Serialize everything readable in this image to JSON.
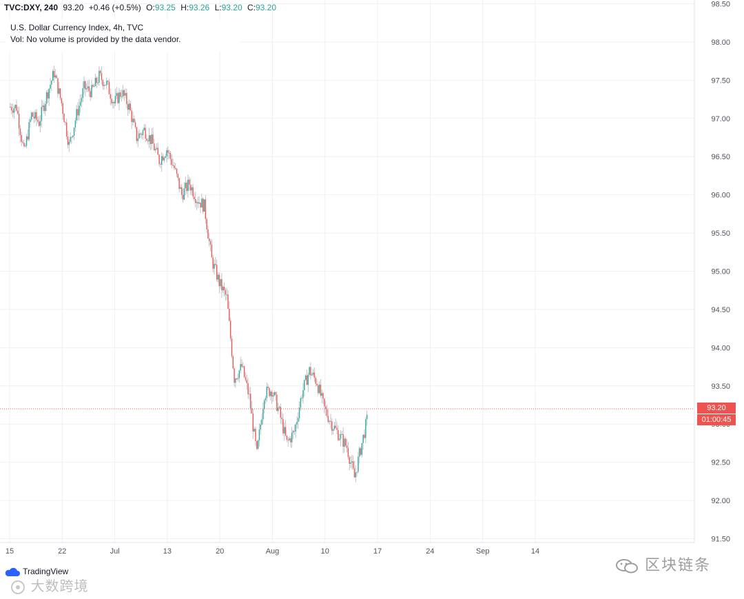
{
  "header": {
    "symbol": "TVC:DXY, 240",
    "last": "93.20",
    "change": "+0.46 (+0.5%)",
    "o_label": "O:",
    "o_value": "93.25",
    "h_label": "H:",
    "h_value": "93.26",
    "l_label": "L:",
    "l_value": "93.20",
    "c_label": "C:",
    "c_value": "93.20"
  },
  "legend": {
    "title": "U.S. Dollar Currency Index, 4h, TVC",
    "volume_note": "Vol: No volume is provided by the data vendor."
  },
  "price_axis": {
    "current_price": "93.20",
    "countdown": "01:00:45"
  },
  "branding": {
    "tradingview": "TradingView",
    "watermark_left": "大数跨境",
    "watermark_right": "区块链条"
  },
  "colors": {
    "up": "#26a69a",
    "down": "#ef5350",
    "grid": "#eef0f3",
    "axis_text": "#50535e",
    "price_line": "#ef5350"
  },
  "chart_data": {
    "type": "candlestick",
    "title": "U.S. Dollar Currency Index, 4h, TVC",
    "ylim": [
      91.45,
      98.55
    ],
    "y_ticks": [
      "98.50",
      "98.00",
      "97.50",
      "97.00",
      "96.50",
      "96.00",
      "95.50",
      "95.00",
      "94.50",
      "94.00",
      "93.50",
      "93.00",
      "92.50",
      "92.00",
      "91.50"
    ],
    "x_ticks": [
      "15",
      "22",
      "Jul",
      "13",
      "20",
      "Aug",
      "10",
      "17",
      "24",
      "Sep",
      "14"
    ],
    "x_tick_index": [
      0,
      7,
      14,
      21,
      28,
      35,
      42,
      49,
      56,
      63,
      70
    ],
    "grid": true,
    "price_line": 93.2,
    "daily_close": [
      97.15,
      96.55,
      97.05,
      96.95,
      97.3,
      97.6,
      97.2,
      96.65,
      97.05,
      97.4,
      97.35,
      97.55,
      97.45,
      97.2,
      97.35,
      97.15,
      96.75,
      96.85,
      96.7,
      96.45,
      96.6,
      96.35,
      96.0,
      96.15,
      95.95,
      95.85,
      95.15,
      94.85,
      94.65,
      93.6,
      93.75,
      93.35,
      92.6,
      93.4,
      93.45,
      93.15,
      92.75,
      92.9,
      93.4,
      93.7,
      93.55,
      93.2,
      93.0,
      92.85,
      92.7,
      92.3,
      92.75,
      93.2
    ]
  }
}
